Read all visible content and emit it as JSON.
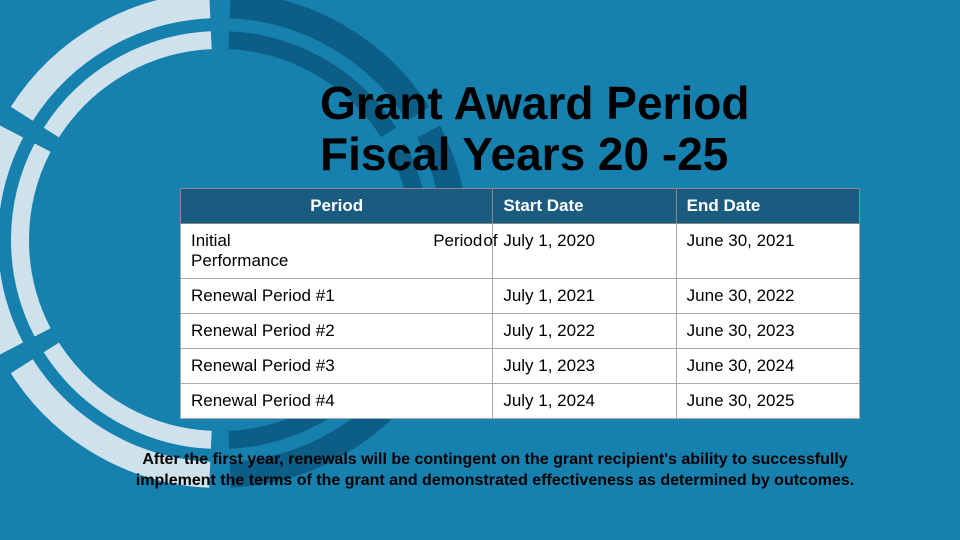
{
  "background_color": "#1681af",
  "ring": {
    "segments": 6,
    "gap_deg": 5,
    "stroke_width_outer": 26,
    "stroke_width_inner": 18,
    "segment_colors": [
      "#0c5e86",
      "#0c5e86",
      "#0c5e86",
      "#cfe2ec",
      "#cfe2ec",
      "#cfe2ec"
    ]
  },
  "title_line1": "Grant Award Period",
  "title_line2": "Fiscal Years 20 -25",
  "table": {
    "header_bg": "#1a5b80",
    "header_fg": "#ffffff",
    "cell_bg": "#ffffff",
    "cell_fg": "#000000",
    "columns": [
      "Period",
      "Start Date",
      "End Date"
    ],
    "rows": [
      {
        "period_left": "Initial",
        "period_right": "Period",
        "period_line2": "Performance",
        "of": "of",
        "start": "July 1, 2020",
        "end": "June 30, 2021"
      },
      {
        "period": "Renewal Period #1",
        "start": "July 1, 2021",
        "end": "June 30, 2022"
      },
      {
        "period": "Renewal Period #2",
        "start": "July 1, 2022",
        "end": "June 30, 2023"
      },
      {
        "period": "Renewal Period #3",
        "start": "July 1, 2023",
        "end": "June 30, 2024"
      },
      {
        "period": "Renewal Period #4",
        "start": "July 1, 2024",
        "end": "June 30, 2025"
      }
    ]
  },
  "footnote": "After the first year, renewals will be contingent on the grant recipient's ability to successfully implement the terms of the grant and demonstrated effectiveness as determined by outcomes."
}
